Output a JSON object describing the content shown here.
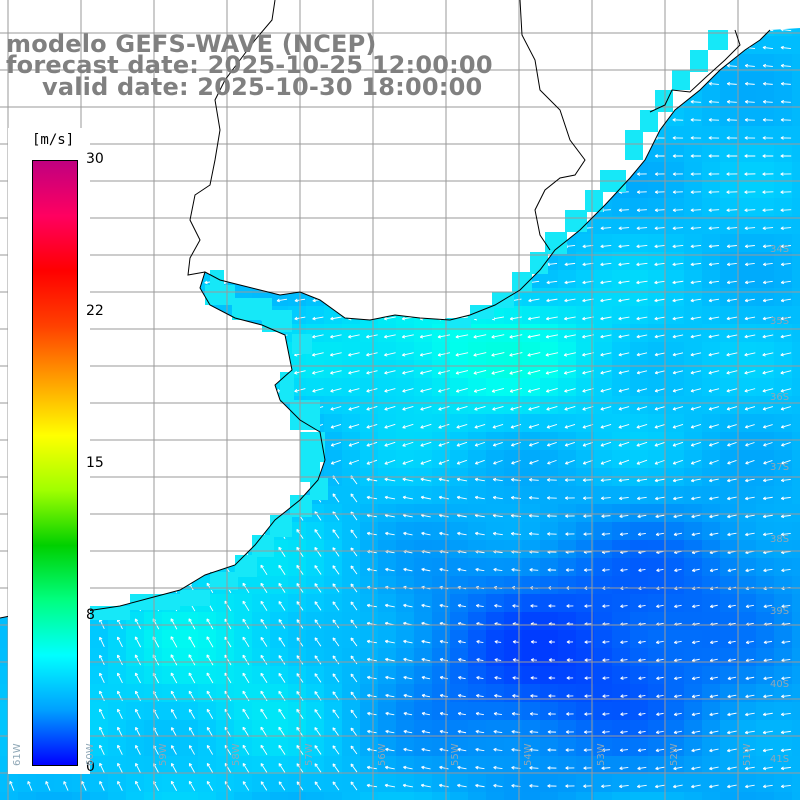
{
  "title": {
    "line1": "modelo GEFS-WAVE (NCEP)",
    "line2": "forecast date: 2025-10-25 12:00:00",
    "line3": "valid date: 2025-10-30 18:00:00"
  },
  "colorbar": {
    "unit": "[m/s]",
    "min": 0,
    "max": 30,
    "ticks": [
      "30",
      "22",
      "15",
      "8",
      "0"
    ],
    "colors": [
      "#0000ff",
      "#00a0ff",
      "#00ffff",
      "#00ff80",
      "#00d000",
      "#a0ff00",
      "#ffff00",
      "#ffa000",
      "#ff4000",
      "#ff0000",
      "#ff0060",
      "#c00080"
    ]
  },
  "map": {
    "land_color": "#ffffff",
    "grid_color": "#9a9a9a",
    "coast_color": "#000000",
    "arrow_color": "#ffffff",
    "lat_labels": [
      "34S",
      "35S",
      "36S",
      "37S",
      "38S",
      "39S",
      "40S",
      "41S"
    ],
    "lon_labels": [
      "61W",
      "60W",
      "59W",
      "58W",
      "57W",
      "56W",
      "55W",
      "54W",
      "53W",
      "52W",
      "51W"
    ]
  }
}
